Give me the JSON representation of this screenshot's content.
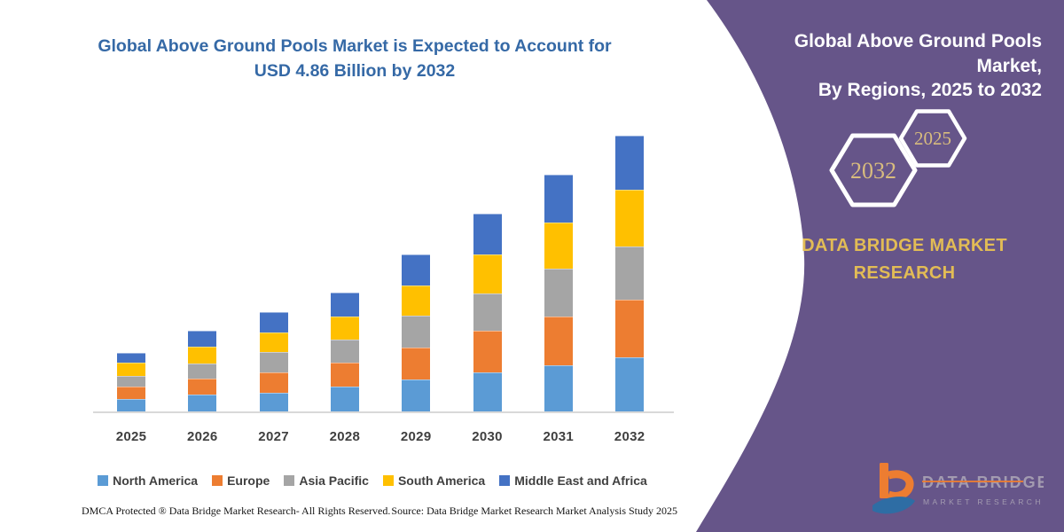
{
  "left_panel": {
    "title_line1": "Global Above Ground Pools Market is Expected to Account for",
    "title_line2": "USD 4.86 Billion by 2032",
    "title_color": "#3569A6"
  },
  "chart_data": {
    "type": "bar",
    "stacked": true,
    "title": "Global Above Ground Pools Market, By Regions, 2025 to 2032",
    "unit": "USD Billion (estimated from bar heights; 2032 total labeled 4.86)",
    "categories": [
      "2025",
      "2026",
      "2027",
      "2028",
      "2029",
      "2030",
      "2031",
      "2032"
    ],
    "series": [
      {
        "name": "North America",
        "color": "#5B9BD5",
        "values": [
          0.22,
          0.29,
          0.33,
          0.43,
          0.56,
          0.69,
          0.81,
          0.95
        ]
      },
      {
        "name": "Europe",
        "color": "#ED7D31",
        "values": [
          0.21,
          0.29,
          0.36,
          0.43,
          0.57,
          0.73,
          0.86,
          1.02
        ]
      },
      {
        "name": "Asia Pacific",
        "color": "#A5A5A5",
        "values": [
          0.19,
          0.27,
          0.36,
          0.41,
          0.56,
          0.66,
          0.85,
          0.94
        ]
      },
      {
        "name": "South America",
        "color": "#FFC000",
        "values": [
          0.24,
          0.29,
          0.34,
          0.4,
          0.53,
          0.69,
          0.81,
          0.99
        ]
      },
      {
        "name": "Middle East and Africa",
        "color": "#4472C4",
        "values": [
          0.17,
          0.28,
          0.36,
          0.43,
          0.55,
          0.71,
          0.84,
          0.96
        ]
      }
    ],
    "totals": [
      1.03,
      1.42,
      1.75,
      2.1,
      2.77,
      3.48,
      4.17,
      4.86
    ],
    "ylim": [
      0,
      5.2
    ],
    "grid": false,
    "axis_color": "#D9D9D9",
    "label_color": "#3F3F3F",
    "legend_position": "bottom"
  },
  "footer": {
    "left_text": "DMCA Protected ® Data Bridge Market Research-  All Rights Reserved.",
    "right_text": "Source: Data Bridge Market Research  Market Analysis Study 2025"
  },
  "right_panel": {
    "bg_color": "#665589",
    "title_line1": "Global Above Ground Pools Market,",
    "title_line2": "By Regions, 2025 to 2032",
    "hexagon_large_label": "2032",
    "hexagon_small_label": "2025",
    "hex_label_color": "#D8BC7E",
    "brand_line1": "DATA BRIDGE MARKET",
    "brand_line2": "RESEARCH",
    "brand_color": "#E2BC55",
    "logo": {
      "text_top": "DATA BRIDGE",
      "text_bottom": "MARKET RESEARCH",
      "orange": "#ED7D31",
      "blue": "#2E6DA4",
      "text_color": "#A39BB0"
    }
  }
}
